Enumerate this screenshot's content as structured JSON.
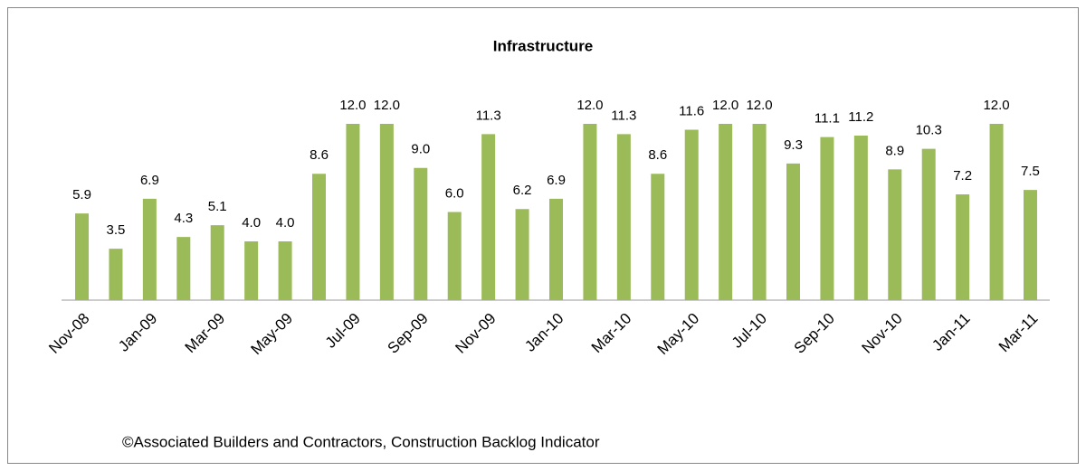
{
  "chart_data": {
    "type": "bar",
    "title": "Infrastructure",
    "categories": [
      "Nov-08",
      null,
      "Jan-09",
      null,
      "Mar-09",
      null,
      "May-09",
      null,
      "Jul-09",
      null,
      "Sep-09",
      null,
      "Nov-09",
      null,
      "Jan-10",
      null,
      "Mar-10",
      null,
      "May-10",
      null,
      "Jul-10",
      null,
      "Sep-10",
      null,
      "Nov-10",
      null,
      "Jan-11",
      null,
      "Mar-11"
    ],
    "values": [
      5.9,
      3.5,
      6.9,
      4.3,
      5.1,
      4.0,
      4.0,
      8.6,
      12.0,
      12.0,
      9.0,
      6.0,
      11.3,
      6.2,
      6.9,
      12.0,
      11.3,
      8.6,
      11.6,
      12.0,
      12.0,
      9.3,
      11.1,
      11.2,
      8.9,
      10.3,
      7.2,
      12.0,
      7.5
    ],
    "value_labels": [
      "5.9",
      "3.5",
      "6.9",
      "4.3",
      "5.1",
      "4.0",
      "4.0",
      "8.6",
      "12.0",
      "12.0",
      "9.0",
      "6.0",
      "11.3",
      "6.2",
      "6.9",
      "12.0",
      "11.3",
      "8.6",
      "11.6",
      "12.0",
      "12.0",
      "9.3",
      "11.1",
      "11.2",
      "8.9",
      "10.3",
      "7.2",
      "12.0",
      "7.5"
    ],
    "color": "#9bbb59",
    "ylim": [
      0,
      14
    ],
    "annotation": "©Associated Builders and Contractors, Construction Backlog Indicator"
  }
}
